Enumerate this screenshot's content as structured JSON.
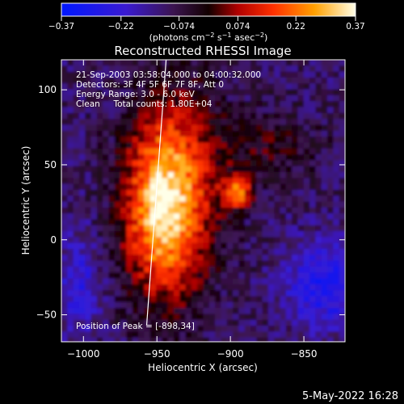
{
  "chart_data": {
    "type": "heatmap",
    "title": "Reconstructed RHESSI Image",
    "xlabel": "Heliocentric X (arcsec)",
    "ylabel": "Heliocentric Y (arcsec)",
    "xlim": [
      -1015,
      -822
    ],
    "ylim": [
      -68,
      120
    ],
    "x_ticks": [
      -1000,
      -950,
      -900,
      -850
    ],
    "x_tick_labels": [
      "−1000",
      "−950",
      "−900",
      "−850"
    ],
    "y_ticks": [
      -50,
      0,
      50,
      100
    ],
    "y_tick_labels": [
      "−50",
      "0",
      "50",
      "100"
    ],
    "colorbar": {
      "ticks": [
        -0.37,
        -0.22,
        -0.074,
        0.074,
        0.22,
        0.37
      ],
      "tick_labels": [
        "−0.37",
        "−0.22",
        "−0.074",
        "0.074",
        "0.22",
        "0.37"
      ],
      "range": [
        -0.37,
        0.37
      ],
      "colormap": "blue-purple-black-red-orange-yellow-white"
    },
    "units_label_parts": {
      "a": "(photons cm",
      "b": "−2",
      "c": " s",
      "d": "−1",
      "e": " asec",
      "f": "−2",
      "g": ")"
    },
    "annotations": [
      "21-Sep-2003 03:58:04.000 to 04:00:32.000",
      "Detectors: 3F 4F 5F 6F 7F 8F, Att 0",
      "Energy Range: 3.0 - 6.0 keV",
      "Clean     Total counts: 1.80E+04"
    ],
    "peak_label": "Position of Peak = [-898,34]",
    "peak_position": [
      -898,
      34
    ],
    "limb_x": [
      -952,
      -957
    ],
    "timestamp": "5-May-2022 16:28"
  }
}
